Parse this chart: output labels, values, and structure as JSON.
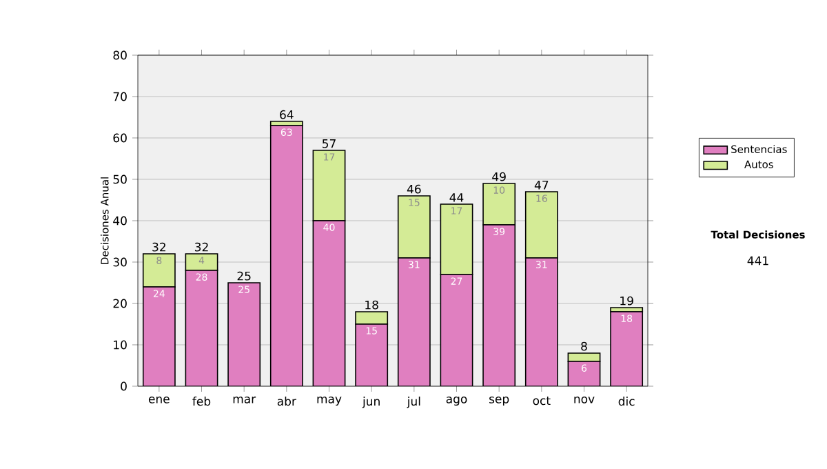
{
  "chart_data": {
    "type": "bar",
    "stacked": true,
    "ylabel": "Decisiones Anual",
    "categories": [
      "ene",
      "feb",
      "mar",
      "abr",
      "may",
      "jun",
      "jul",
      "ago",
      "sep",
      "oct",
      "nov",
      "dic"
    ],
    "series": [
      {
        "name": "Sentencias",
        "color": "#e07fc0",
        "values": [
          24,
          28,
          25,
          63,
          40,
          15,
          31,
          27,
          39,
          31,
          6,
          18
        ],
        "value_labels": [
          "24",
          "28",
          "25",
          "63",
          "40",
          "15",
          "31",
          "27",
          "39",
          "31",
          "6",
          "18"
        ]
      },
      {
        "name": "Autos",
        "color": "#d4eb96",
        "values": [
          8,
          4,
          0,
          1,
          17,
          3,
          15,
          17,
          10,
          16,
          2,
          1
        ],
        "value_labels": [
          "8",
          "4",
          null,
          null,
          "17",
          null,
          "15",
          "17",
          "10",
          "16",
          null,
          null
        ]
      }
    ],
    "totals": [
      "32",
      "32",
      "25",
      "64",
      "57",
      "18",
      "46",
      "44",
      "49",
      "47",
      "8",
      "19"
    ],
    "ylim": [
      0,
      80
    ],
    "yticks": [
      0,
      10,
      20,
      30,
      40,
      50,
      60,
      70,
      80
    ],
    "grid": "y",
    "legend": "right",
    "annotations": [
      "Total Decisiones",
      "441"
    ]
  }
}
